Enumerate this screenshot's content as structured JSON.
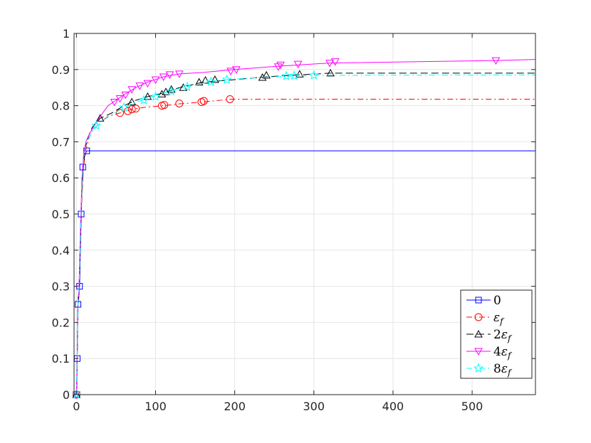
{
  "chart_data": {
    "type": "line",
    "title": "",
    "xlabel": "",
    "ylabel": "",
    "xlim": [
      -3,
      580
    ],
    "ylim": [
      0,
      1
    ],
    "xticks": [
      0,
      100,
      200,
      300,
      400,
      500
    ],
    "xtick_labels": [
      "0",
      "100",
      "200",
      "300",
      "400",
      "500"
    ],
    "yticks": [
      0,
      0.1,
      0.2,
      0.3,
      0.4,
      0.5,
      0.6,
      0.7,
      0.8,
      0.9,
      1
    ],
    "ytick_labels": [
      "0",
      "0.1",
      "0.2",
      "0.3",
      "0.4",
      "0.5",
      "0.6",
      "0.7",
      "0.8",
      "0.9",
      "1"
    ],
    "grid": true,
    "legend_position": "bottom-right",
    "series": [
      {
        "name": "0",
        "color": "#0000ff",
        "dash": "solid",
        "marker": "square",
        "points": [
          [
            0,
            0
          ],
          [
            0.5,
            0.02
          ],
          [
            1,
            0.1
          ],
          [
            1.5,
            0.2
          ],
          [
            2,
            0.25
          ],
          [
            3,
            0.27
          ],
          [
            4,
            0.3
          ],
          [
            5,
            0.4
          ],
          [
            6,
            0.5
          ],
          [
            7,
            0.58
          ],
          [
            8,
            0.63
          ],
          [
            10,
            0.66
          ],
          [
            13,
            0.675
          ],
          [
            580,
            0.675
          ]
        ],
        "marker_points": [
          [
            0,
            0
          ],
          [
            1,
            0.1
          ],
          [
            2,
            0.25
          ],
          [
            4,
            0.3
          ],
          [
            6,
            0.5
          ],
          [
            8,
            0.63
          ],
          [
            13,
            0.675
          ]
        ]
      },
      {
        "name": "ε_f",
        "color": "#ff0000",
        "dash": "dashdot",
        "marker": "circle",
        "points": [
          [
            0,
            0
          ],
          [
            1,
            0.1
          ],
          [
            2,
            0.26
          ],
          [
            3,
            0.27
          ],
          [
            5,
            0.4
          ],
          [
            7,
            0.55
          ],
          [
            9,
            0.63
          ],
          [
            12,
            0.68
          ],
          [
            16,
            0.71
          ],
          [
            20,
            0.73
          ],
          [
            30,
            0.755
          ],
          [
            40,
            0.77
          ],
          [
            55,
            0.78
          ],
          [
            70,
            0.79
          ],
          [
            85,
            0.795
          ],
          [
            110,
            0.8
          ],
          [
            130,
            0.805
          ],
          [
            160,
            0.81
          ],
          [
            195,
            0.818
          ],
          [
            580,
            0.818
          ]
        ],
        "marker_points": [
          [
            0,
            0
          ],
          [
            55,
            0.78
          ],
          [
            65,
            0.785
          ],
          [
            70,
            0.79
          ],
          [
            75,
            0.792
          ],
          [
            108,
            0.8
          ],
          [
            111,
            0.802
          ],
          [
            130,
            0.806
          ],
          [
            158,
            0.81
          ],
          [
            161,
            0.813
          ],
          [
            194,
            0.818
          ]
        ]
      },
      {
        "name": "2ε_f",
        "color": "#000000",
        "dash": "longdash",
        "marker": "triangle-up",
        "points": [
          [
            0,
            0
          ],
          [
            1,
            0.1
          ],
          [
            2,
            0.26
          ],
          [
            3,
            0.27
          ],
          [
            5,
            0.42
          ],
          [
            7,
            0.57
          ],
          [
            9,
            0.64
          ],
          [
            12,
            0.69
          ],
          [
            16,
            0.72
          ],
          [
            20,
            0.74
          ],
          [
            30,
            0.765
          ],
          [
            45,
            0.78
          ],
          [
            60,
            0.8
          ],
          [
            75,
            0.815
          ],
          [
            90,
            0.825
          ],
          [
            110,
            0.835
          ],
          [
            130,
            0.85
          ],
          [
            160,
            0.865
          ],
          [
            200,
            0.872
          ],
          [
            240,
            0.88
          ],
          [
            280,
            0.885
          ],
          [
            320,
            0.89
          ],
          [
            580,
            0.89
          ]
        ],
        "marker_points": [
          [
            0,
            0
          ],
          [
            30,
            0.765
          ],
          [
            70,
            0.81
          ],
          [
            90,
            0.825
          ],
          [
            108,
            0.832
          ],
          [
            113,
            0.838
          ],
          [
            120,
            0.845
          ],
          [
            135,
            0.85
          ],
          [
            155,
            0.865
          ],
          [
            163,
            0.87
          ],
          [
            175,
            0.872
          ],
          [
            235,
            0.878
          ],
          [
            240,
            0.884
          ],
          [
            282,
            0.887
          ],
          [
            321,
            0.89
          ]
        ]
      },
      {
        "name": "4ε_f",
        "color": "#ff00ff",
        "dash": "solid",
        "marker": "triangle-down",
        "points": [
          [
            0,
            0
          ],
          [
            1,
            0.1
          ],
          [
            2,
            0.27
          ],
          [
            3,
            0.28
          ],
          [
            5,
            0.45
          ],
          [
            7,
            0.6
          ],
          [
            9,
            0.66
          ],
          [
            12,
            0.7
          ],
          [
            16,
            0.72
          ],
          [
            20,
            0.735
          ],
          [
            30,
            0.77
          ],
          [
            40,
            0.8
          ],
          [
            50,
            0.815
          ],
          [
            60,
            0.83
          ],
          [
            75,
            0.85
          ],
          [
            90,
            0.865
          ],
          [
            110,
            0.88
          ],
          [
            130,
            0.888
          ],
          [
            160,
            0.892
          ],
          [
            200,
            0.9
          ],
          [
            260,
            0.91
          ],
          [
            320,
            0.918
          ],
          [
            530,
            0.925
          ],
          [
            580,
            0.928
          ]
        ],
        "marker_points": [
          [
            0,
            0
          ],
          [
            48,
            0.81
          ],
          [
            55,
            0.82
          ],
          [
            62,
            0.83
          ],
          [
            70,
            0.845
          ],
          [
            80,
            0.855
          ],
          [
            90,
            0.862
          ],
          [
            100,
            0.872
          ],
          [
            110,
            0.88
          ],
          [
            118,
            0.886
          ],
          [
            130,
            0.888
          ],
          [
            195,
            0.896
          ],
          [
            202,
            0.9
          ],
          [
            255,
            0.908
          ],
          [
            258,
            0.913
          ],
          [
            280,
            0.915
          ],
          [
            320,
            0.918
          ],
          [
            327,
            0.922
          ],
          [
            530,
            0.925
          ]
        ]
      },
      {
        "name": "8ε_f",
        "color": "#00ffff",
        "dash": "dashdot",
        "marker": "star",
        "points": [
          [
            0,
            0
          ],
          [
            1,
            0.1
          ],
          [
            2,
            0.26
          ],
          [
            3,
            0.27
          ],
          [
            5,
            0.42
          ],
          [
            7,
            0.58
          ],
          [
            9,
            0.65
          ],
          [
            12,
            0.69
          ],
          [
            16,
            0.71
          ],
          [
            20,
            0.73
          ],
          [
            30,
            0.755
          ],
          [
            45,
            0.775
          ],
          [
            60,
            0.795
          ],
          [
            75,
            0.81
          ],
          [
            90,
            0.82
          ],
          [
            110,
            0.835
          ],
          [
            130,
            0.848
          ],
          [
            160,
            0.862
          ],
          [
            190,
            0.872
          ],
          [
            230,
            0.878
          ],
          [
            270,
            0.882
          ],
          [
            300,
            0.884
          ],
          [
            580,
            0.885
          ]
        ],
        "marker_points": [
          [
            0,
            0
          ],
          [
            25,
            0.745
          ],
          [
            60,
            0.795
          ],
          [
            85,
            0.815
          ],
          [
            100,
            0.825
          ],
          [
            120,
            0.84
          ],
          [
            140,
            0.852
          ],
          [
            170,
            0.866
          ],
          [
            190,
            0.872
          ],
          [
            265,
            0.882
          ],
          [
            275,
            0.883
          ],
          [
            300,
            0.884
          ]
        ]
      }
    ]
  }
}
